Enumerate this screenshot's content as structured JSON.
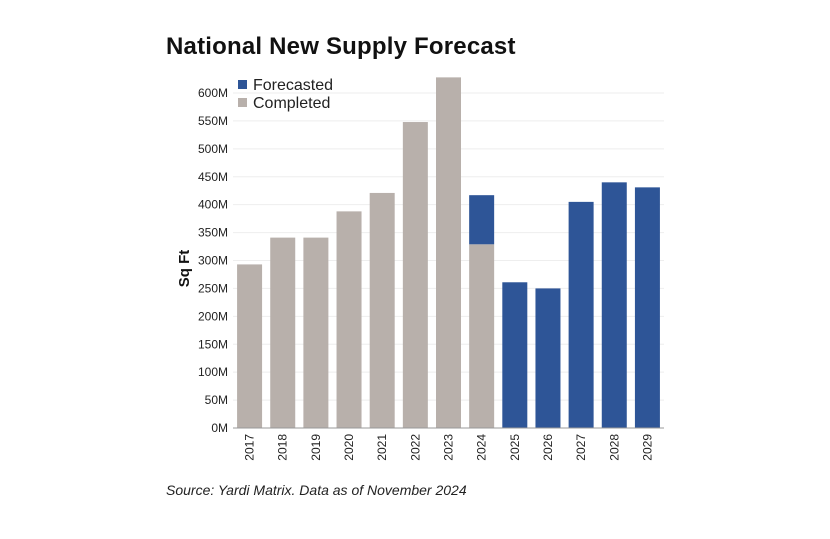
{
  "title": "National New Supply Forecast",
  "source": "Source: Yardi Matrix. Data as of November 2024",
  "colors": {
    "forecasted": "#2e5597",
    "completed": "#b8b0ab",
    "grid": "#eeeeee",
    "axis": "#999999"
  },
  "chart_data": {
    "type": "bar",
    "stacked": true,
    "title": "National New Supply Forecast",
    "ylabel": "Sq Ft",
    "xlabel": "",
    "ylim": [
      0,
      600
    ],
    "yticks": [
      "0M",
      "50M",
      "100M",
      "150M",
      "200M",
      "250M",
      "300M",
      "350M",
      "400M",
      "450M",
      "500M",
      "550M",
      "600M"
    ],
    "grid": true,
    "legend_position": "top-left",
    "categories": [
      "2017",
      "2018",
      "2019",
      "2020",
      "2021",
      "2022",
      "2023",
      "2024",
      "2025",
      "2026",
      "2027",
      "2028",
      "2029"
    ],
    "series": [
      {
        "name": "Completed",
        "values": [
          293,
          341,
          341,
          388,
          421,
          548,
          628,
          329,
          0,
          0,
          0,
          0,
          0
        ]
      },
      {
        "name": "Forecasted",
        "values": [
          0,
          0,
          0,
          0,
          0,
          0,
          0,
          88,
          261,
          250,
          405,
          440,
          431
        ]
      }
    ]
  }
}
